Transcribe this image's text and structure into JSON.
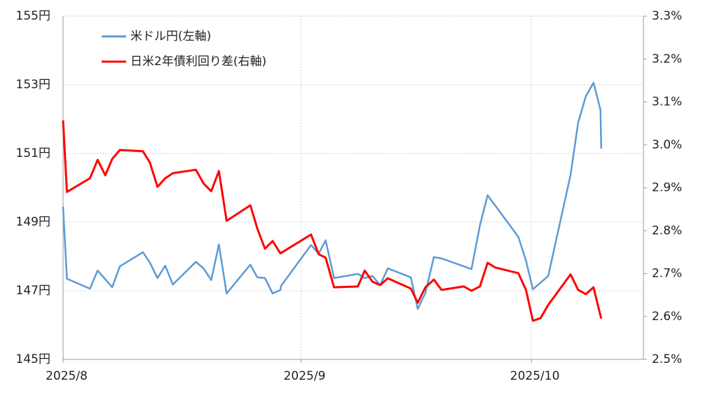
{
  "chart_data": {
    "type": "line",
    "xlim": [
      0,
      75.6
    ],
    "xticks": [
      {
        "value": 0,
        "label": "2025/8"
      },
      {
        "value": 31,
        "label": "2025/9"
      },
      {
        "value": 61,
        "label": "2025/10"
      }
    ],
    "ylim": [
      145,
      155
    ],
    "yticks": [
      {
        "value": 145,
        "label": "145円"
      },
      {
        "value": 147,
        "label": "147円"
      },
      {
        "value": 149,
        "label": "149円"
      },
      {
        "value": 151,
        "label": "151円"
      },
      {
        "value": 153,
        "label": "153円"
      },
      {
        "value": 155,
        "label": "155円"
      }
    ],
    "y2lim": [
      2.5,
      3.3
    ],
    "y2ticks": [
      {
        "value": 2.5,
        "label": "2.5%"
      },
      {
        "value": 2.6,
        "label": "2.6%"
      },
      {
        "value": 2.7,
        "label": "2.7%"
      },
      {
        "value": 2.8,
        "label": "2.8%"
      },
      {
        "value": 2.9,
        "label": "2.9%"
      },
      {
        "value": 3.0,
        "label": "3.0%"
      },
      {
        "value": 3.1,
        "label": "3.1%"
      },
      {
        "value": 3.2,
        "label": "3.2%"
      },
      {
        "value": 3.3,
        "label": "3.3%"
      }
    ],
    "grid": true,
    "legend": "upper left",
    "series": [
      {
        "name": "米ドル円(左軸)",
        "color": "#5b9bd5",
        "axis": "y",
        "x": [
          0,
          0.5,
          3.5,
          4.5,
          6.4,
          7.4,
          10.4,
          11.3,
          12.3,
          13.3,
          14.3,
          17.3,
          18.3,
          19.3,
          20.3,
          21.3,
          24.4,
          25.3,
          26.3,
          27.3,
          28.3,
          28.4,
          32.3,
          33.3,
          34.2,
          35.3,
          38.4,
          39.3,
          40.3,
          41.3,
          42.3,
          45.3,
          46.2,
          47.2,
          48.3,
          49.3,
          53.2,
          54.3,
          55.3,
          59.3,
          60.3,
          61.2,
          63.2,
          66.1,
          67.1,
          68.1,
          69.1,
          70.0,
          70.1
        ],
        "values": [
          149.45,
          147.35,
          147.06,
          147.59,
          147.1,
          147.71,
          148.12,
          147.82,
          147.37,
          147.73,
          147.18,
          147.84,
          147.65,
          147.31,
          148.35,
          146.92,
          147.76,
          147.39,
          147.37,
          146.92,
          147.02,
          147.14,
          148.33,
          148.08,
          148.47,
          147.37,
          147.49,
          147.37,
          147.43,
          147.16,
          147.65,
          147.39,
          146.47,
          146.94,
          147.98,
          147.94,
          147.63,
          148.9,
          149.78,
          148.57,
          147.88,
          147.04,
          147.43,
          150.37,
          151.9,
          152.67,
          153.06,
          152.27,
          151.14
        ]
      },
      {
        "name": "日米2年債利回り差(右軸)",
        "color": "#ff0000",
        "axis": "y2",
        "x": [
          0,
          0.5,
          3.5,
          4.5,
          5.5,
          6.4,
          7.4,
          10.4,
          11.3,
          12.3,
          13.3,
          14.3,
          17.3,
          18.3,
          19.3,
          20.3,
          21.3,
          24.4,
          25.3,
          26.3,
          27.3,
          28.3,
          32.3,
          33.3,
          34.2,
          35.3,
          38.4,
          39.3,
          40.3,
          41.3,
          42.3,
          45.3,
          46.2,
          47.2,
          48.3,
          49.3,
          52.2,
          53.2,
          54.3,
          55.3,
          56.3,
          59.3,
          60.3,
          61.2,
          62.2,
          63.2,
          66.1,
          67.1,
          68.1,
          69.1,
          70.1
        ],
        "values": [
          3.057,
          2.89,
          2.922,
          2.965,
          2.929,
          2.967,
          2.988,
          2.985,
          2.959,
          2.902,
          2.922,
          2.934,
          2.942,
          2.91,
          2.892,
          2.939,
          2.823,
          2.859,
          2.805,
          2.758,
          2.776,
          2.747,
          2.791,
          2.745,
          2.737,
          2.668,
          2.67,
          2.707,
          2.681,
          2.673,
          2.689,
          2.665,
          2.632,
          2.668,
          2.686,
          2.662,
          2.67,
          2.66,
          2.67,
          2.725,
          2.714,
          2.701,
          2.662,
          2.59,
          2.596,
          2.627,
          2.698,
          2.662,
          2.652,
          2.668,
          2.595
        ]
      }
    ]
  }
}
